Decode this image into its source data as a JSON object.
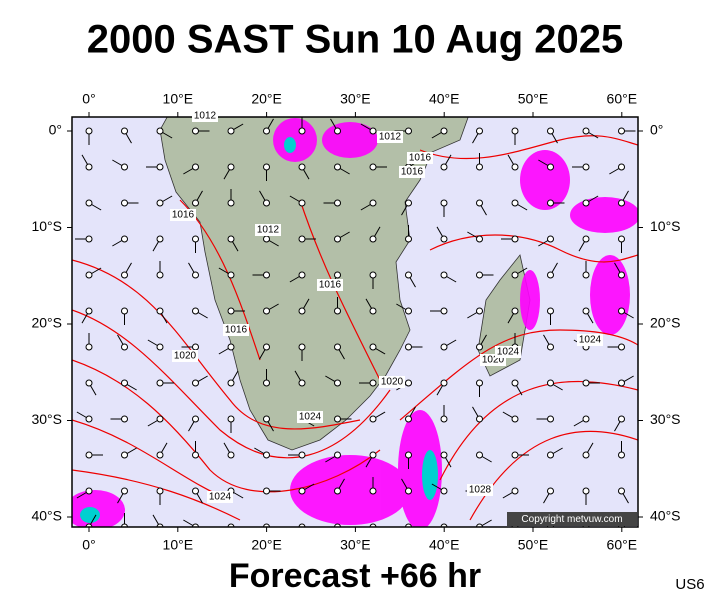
{
  "header": {
    "title": "2000 SAST Sun 10 Aug 2025"
  },
  "map": {
    "lon_labels": [
      "0°",
      "10°E",
      "20°E",
      "30°E",
      "40°E",
      "50°E",
      "60°E"
    ],
    "lat_labels": [
      "0°",
      "10°S",
      "20°S",
      "30°S",
      "40°S"
    ],
    "isobar_labels": [
      "1012",
      "1012",
      "1016",
      "1016",
      "1016",
      "1012",
      "1016",
      "1016",
      "1020",
      "1020",
      "1024",
      "1024",
      "1020",
      "1024",
      "1024",
      "1028"
    ],
    "copyright": "Copyright metvuw.com"
  },
  "footer": {
    "forecast": "Forecast +66 hr",
    "code": "US6"
  }
}
